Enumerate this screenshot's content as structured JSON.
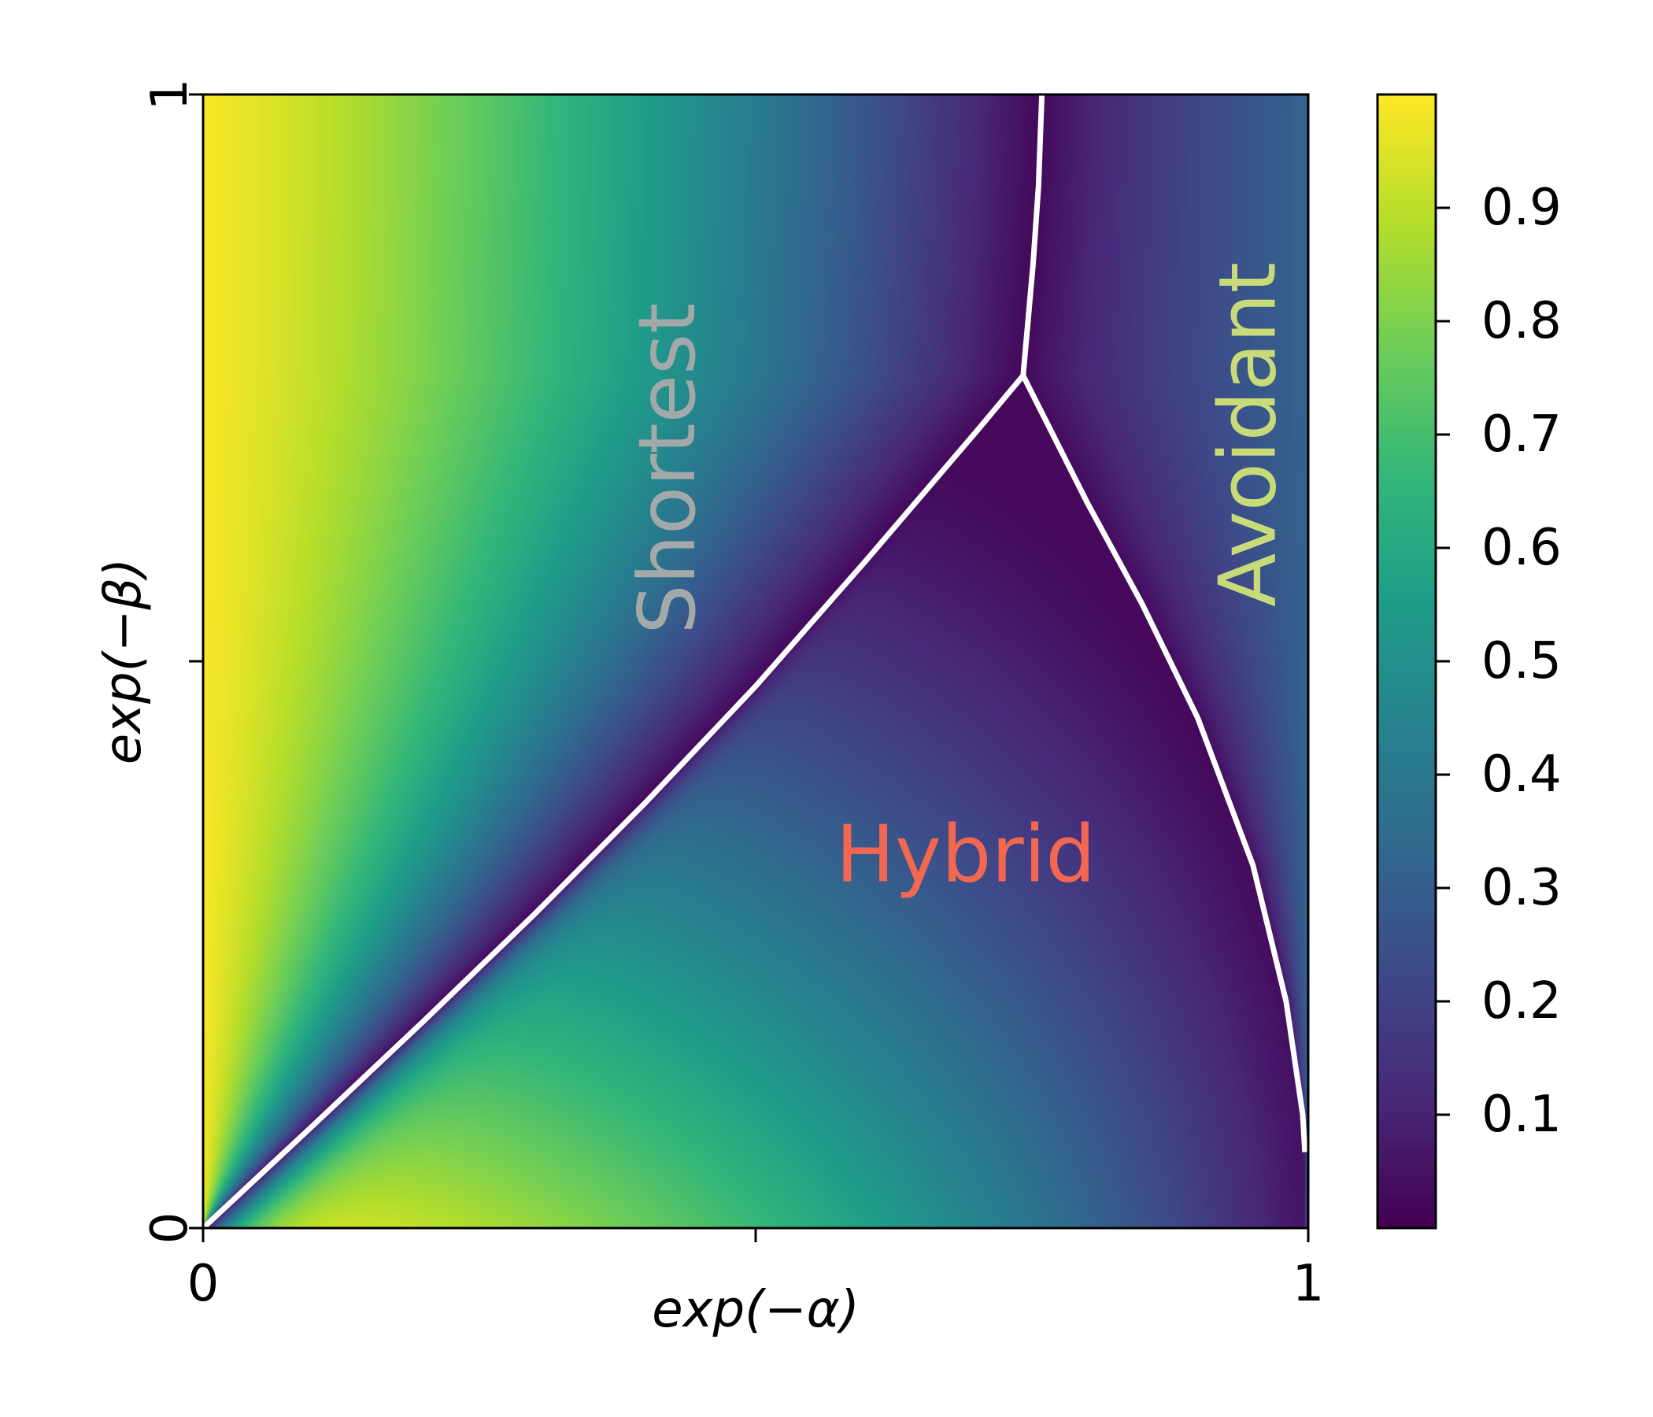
{
  "chart_data": {
    "type": "heatmap",
    "title": "",
    "xlabel": "exp(−α)",
    "ylabel": "exp(−β)",
    "xlim": [
      0,
      1
    ],
    "ylim": [
      0,
      1
    ],
    "x_ticks": [
      {
        "value": 0,
        "label": "0"
      },
      {
        "value": 0.5,
        "label": ""
      },
      {
        "value": 1,
        "label": "1"
      }
    ],
    "y_ticks": [
      {
        "value": 0,
        "label": "0"
      },
      {
        "value": 0.5,
        "label": ""
      },
      {
        "value": 1,
        "label": "1"
      }
    ],
    "colormap": "viridis",
    "colorbar": {
      "range": [
        0,
        1
      ],
      "ticks": [
        {
          "value": 0.1,
          "label": "0.1"
        },
        {
          "value": 0.2,
          "label": "0.2"
        },
        {
          "value": 0.3,
          "label": "0.3"
        },
        {
          "value": 0.4,
          "label": "0.4"
        },
        {
          "value": 0.5,
          "label": "0.5"
        },
        {
          "value": 0.6,
          "label": "0.6"
        },
        {
          "value": 0.7,
          "label": "0.7"
        },
        {
          "value": 0.8,
          "label": "0.8"
        },
        {
          "value": 0.9,
          "label": "0.9"
        }
      ]
    },
    "triple_point": [
      0.742,
      0.752
    ],
    "boundaries": [
      {
        "between": [
          "Shortest",
          "Hybrid"
        ],
        "points": [
          [
            0.0,
            0.0
          ],
          [
            0.1,
            0.091
          ],
          [
            0.2,
            0.183
          ],
          [
            0.3,
            0.277
          ],
          [
            0.4,
            0.375
          ],
          [
            0.5,
            0.478
          ],
          [
            0.6,
            0.589
          ],
          [
            0.7,
            0.703
          ],
          [
            0.742,
            0.752
          ]
        ]
      },
      {
        "between": [
          "Shortest",
          "Avoidant"
        ],
        "points": [
          [
            0.742,
            0.752
          ],
          [
            0.751,
            0.85
          ],
          [
            0.756,
            0.92
          ],
          [
            0.759,
            1.0
          ]
        ]
      },
      {
        "between": [
          "Hybrid",
          "Avoidant"
        ],
        "points": [
          [
            0.742,
            0.752
          ],
          [
            0.8,
            0.64
          ],
          [
            0.85,
            0.55
          ],
          [
            0.9,
            0.45
          ],
          [
            0.95,
            0.32
          ],
          [
            0.98,
            0.2
          ],
          [
            0.995,
            0.1
          ],
          [
            0.997,
            0.067
          ]
        ]
      }
    ],
    "regions": [
      {
        "label": "Shortest",
        "color": "#a3a8a8",
        "at": [
          0.42,
          0.67
        ],
        "rotation": -90
      },
      {
        "label": "Hybrid",
        "color": "#f2674f",
        "at": [
          0.69,
          0.33
        ],
        "rotation": 0
      },
      {
        "label": "Avoidant",
        "color": "#c9db78",
        "at": [
          0.945,
          0.7
        ],
        "rotation": -90
      }
    ],
    "boundary_color": "#ffffff",
    "grid": false,
    "legend": "none"
  }
}
